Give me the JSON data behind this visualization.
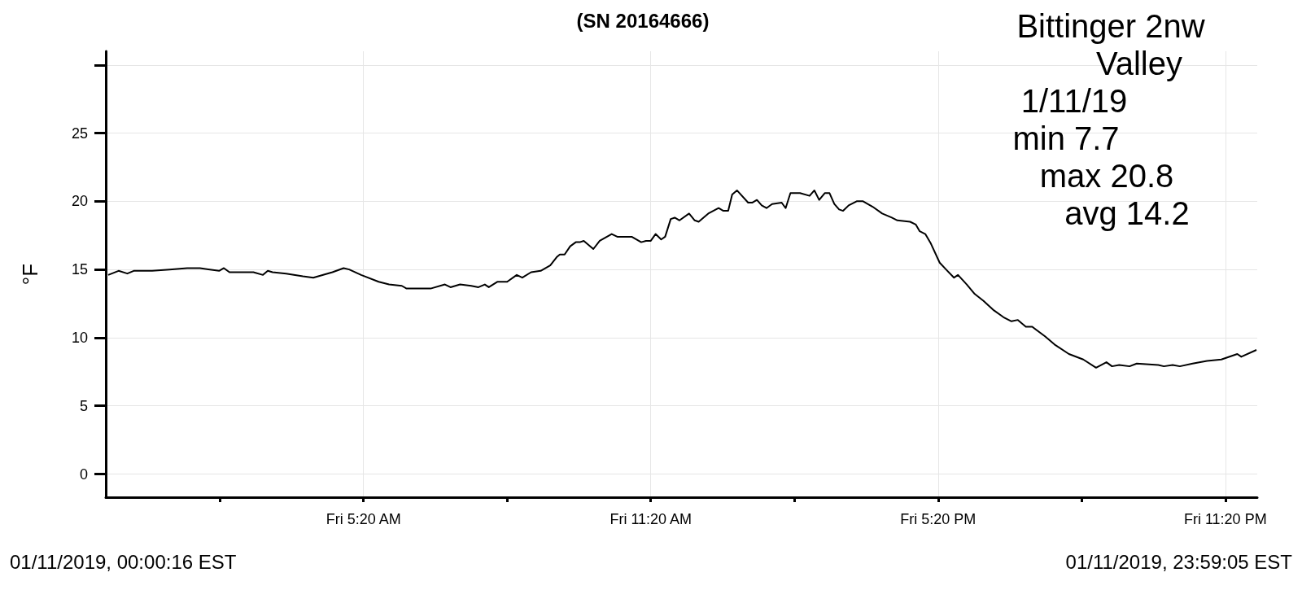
{
  "chart_data": {
    "type": "line",
    "title": "(SN 20164666)",
    "ylabel": "°F",
    "annotations": [
      "Bittinger 2nw",
      "Valley",
      "1/11/19",
      "min 7.7",
      "max 20.8",
      "avg 14.2",
      "01/11/2019, 00:00:16 EST",
      "01/11/2019, 23:59:05 EST"
    ],
    "xlim": [
      "2019-01-10T23:57",
      "2019-01-12T00:00"
    ],
    "xticks": [
      {
        "value": "2019-01-11T02:20",
        "label": null
      },
      {
        "value": "2019-01-11T05:20",
        "label": "Fri 5:20 AM"
      },
      {
        "value": "2019-01-11T08:20",
        "label": null
      },
      {
        "value": "2019-01-11T11:20",
        "label": "Fri 11:20 AM"
      },
      {
        "value": "2019-01-11T14:20",
        "label": null
      },
      {
        "value": "2019-01-11T17:20",
        "label": "Fri 5:20 PM"
      },
      {
        "value": "2019-01-11T20:20",
        "label": null
      },
      {
        "value": "2019-01-11T23:20",
        "label": "Fri 11:20 PM"
      }
    ],
    "ylim": [
      -1.7,
      31
    ],
    "yticks": [
      0,
      5,
      10,
      15,
      20,
      25,
      {
        "value": 30,
        "label": null
      }
    ],
    "grid": true,
    "marker": "none",
    "line_style": "solid",
    "series": [
      {
        "color": "#000000",
        "x": [
          "2019-01-11T00:00",
          "2019-01-11T00:13",
          "2019-01-11T00:24",
          "2019-01-11T00:32",
          "2019-01-11T00:55",
          "2019-01-11T01:17",
          "2019-01-11T01:39",
          "2019-01-11T01:55",
          "2019-01-11T02:19",
          "2019-01-11T02:25",
          "2019-01-11T02:32",
          "2019-01-11T03:02",
          "2019-01-11T03:14",
          "2019-01-11T03:20",
          "2019-01-11T03:26",
          "2019-01-11T03:43",
          "2019-01-11T04:04",
          "2019-01-11T04:17",
          "2019-01-11T04:41",
          "2019-01-11T04:55",
          "2019-01-11T05:02",
          "2019-01-11T05:17",
          "2019-01-11T05:39",
          "2019-01-11T05:52",
          "2019-01-11T06:08",
          "2019-01-11T06:14",
          "2019-01-11T06:44",
          "2019-01-11T07:02",
          "2019-01-11T07:09",
          "2019-01-11T07:21",
          "2019-01-11T07:35",
          "2019-01-11T07:44",
          "2019-01-11T07:52",
          "2019-01-11T07:57",
          "2019-01-11T08:08",
          "2019-01-11T08:20",
          "2019-01-11T08:32",
          "2019-01-11T08:39",
          "2019-01-11T08:50",
          "2019-01-11T09:02",
          "2019-01-11T09:14",
          "2019-01-11T09:22",
          "2019-01-11T09:26",
          "2019-01-11T09:32",
          "2019-01-11T09:39",
          "2019-01-11T09:46",
          "2019-01-11T09:51",
          "2019-01-11T09:56",
          "2019-01-11T10:08",
          "2019-01-11T10:16",
          "2019-01-11T10:31",
          "2019-01-11T10:38",
          "2019-01-11T10:56",
          "2019-01-11T11:08",
          "2019-01-11T11:14",
          "2019-01-11T11:20",
          "2019-01-11T11:26",
          "2019-01-11T11:33",
          "2019-01-11T11:38",
          "2019-01-11T11:45",
          "2019-01-11T11:50",
          "2019-01-11T11:56",
          "2019-01-11T12:08",
          "2019-01-11T12:15",
          "2019-01-11T12:20",
          "2019-01-11T12:32",
          "2019-01-11T12:45",
          "2019-01-11T12:51",
          "2019-01-11T12:57",
          "2019-01-11T13:02",
          "2019-01-11T13:08",
          "2019-01-11T13:22",
          "2019-01-11T13:27",
          "2019-01-11T13:33",
          "2019-01-11T13:39",
          "2019-01-11T13:45",
          "2019-01-11T13:52",
          "2019-01-11T14:04",
          "2019-01-11T14:09",
          "2019-01-11T14:15",
          "2019-01-11T14:27",
          "2019-01-11T14:39",
          "2019-01-11T14:45",
          "2019-01-11T14:51",
          "2019-01-11T14:58",
          "2019-01-11T15:04",
          "2019-01-11T15:10",
          "2019-01-11T15:16",
          "2019-01-11T15:21",
          "2019-01-11T15:28",
          "2019-01-11T15:38",
          "2019-01-11T15:46",
          "2019-01-11T15:58",
          "2019-01-11T16:10",
          "2019-01-11T16:22",
          "2019-01-11T16:29",
          "2019-01-11T16:45",
          "2019-01-11T16:52",
          "2019-01-11T16:57",
          "2019-01-11T17:04",
          "2019-01-11T17:11",
          "2019-01-11T17:22",
          "2019-01-11T17:30",
          "2019-01-11T17:40",
          "2019-01-11T17:45",
          "2019-01-11T17:56",
          "2019-01-11T18:06",
          "2019-01-11T18:17",
          "2019-01-11T18:30",
          "2019-01-11T18:42",
          "2019-01-11T18:52",
          "2019-01-11T19:00",
          "2019-01-11T19:10",
          "2019-01-11T19:18",
          "2019-01-11T19:34",
          "2019-01-11T19:46",
          "2019-01-11T20:04",
          "2019-01-11T20:22",
          "2019-01-11T20:38",
          "2019-01-11T20:51",
          "2019-01-11T20:58",
          "2019-01-11T21:07",
          "2019-01-11T21:20",
          "2019-01-11T21:29",
          "2019-01-11T21:56",
          "2019-01-11T22:03",
          "2019-01-11T22:14",
          "2019-01-11T22:23",
          "2019-01-11T22:39",
          "2019-01-11T22:57",
          "2019-01-11T23:15",
          "2019-01-11T23:35",
          "2019-01-11T23:40",
          "2019-01-11T23:59"
        ],
        "values": [
          14.6,
          14.9,
          14.7,
          14.9,
          14.9,
          15.0,
          15.1,
          15.1,
          14.9,
          15.1,
          14.8,
          14.8,
          14.6,
          14.9,
          14.8,
          14.7,
          14.5,
          14.4,
          14.8,
          15.1,
          15.0,
          14.6,
          14.1,
          13.9,
          13.8,
          13.6,
          13.6,
          13.9,
          13.7,
          13.9,
          13.8,
          13.7,
          13.9,
          13.7,
          14.1,
          14.1,
          14.6,
          14.4,
          14.8,
          14.9,
          15.3,
          15.9,
          16.1,
          16.1,
          16.7,
          17.0,
          17.0,
          17.1,
          16.5,
          17.1,
          17.6,
          17.4,
          17.4,
          17.0,
          17.1,
          17.1,
          17.6,
          17.2,
          17.4,
          18.7,
          18.8,
          18.6,
          19.1,
          18.6,
          18.5,
          19.1,
          19.5,
          19.3,
          19.3,
          20.5,
          20.8,
          19.9,
          19.9,
          20.1,
          19.7,
          19.5,
          19.8,
          19.9,
          19.5,
          20.6,
          20.6,
          20.4,
          20.8,
          20.1,
          20.6,
          20.6,
          19.8,
          19.4,
          19.3,
          19.7,
          20.0,
          20.0,
          19.6,
          19.1,
          18.8,
          18.6,
          18.5,
          18.3,
          17.8,
          17.6,
          16.9,
          15.5,
          15.0,
          14.4,
          14.6,
          13.9,
          13.2,
          12.7,
          12.0,
          11.5,
          11.2,
          11.3,
          10.8,
          10.8,
          10.1,
          9.5,
          8.8,
          8.4,
          7.8,
          8.2,
          7.9,
          8.0,
          7.9,
          8.1,
          8.0,
          7.9,
          8.0,
          7.9,
          8.1,
          8.3,
          8.4,
          8.8,
          8.6,
          9.1
        ]
      }
    ]
  }
}
